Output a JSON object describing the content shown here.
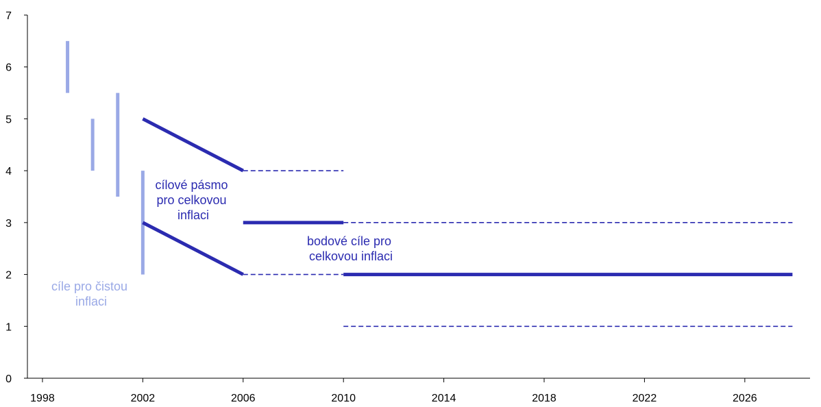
{
  "chart_data": {
    "type": "line",
    "title": "",
    "xlabel": "",
    "ylabel": "",
    "xlim": [
      1997.4,
      2028.6
    ],
    "ylim": [
      0,
      7
    ],
    "grid": false,
    "x_ticks": [
      1998,
      2002,
      2006,
      2010,
      2014,
      2018,
      2022,
      2026
    ],
    "y_ticks": [
      0,
      1,
      2,
      3,
      4,
      5,
      6,
      7
    ],
    "colors": {
      "net_targets": "#9aa9e6",
      "headline": "#2b2bb0",
      "axis": "#000000"
    },
    "series": [
      {
        "kind": "net-inflation-target-ranges",
        "color": "#9aa9e6",
        "ranges": [
          {
            "x": 1999,
            "low": 5.5,
            "high": 6.5
          },
          {
            "x": 2000,
            "low": 4.0,
            "high": 5.0
          },
          {
            "x": 2001,
            "low": 3.5,
            "high": 5.5
          },
          {
            "x": 2002,
            "low": 2.0,
            "high": 4.0
          }
        ]
      },
      {
        "kind": "target-band-upper",
        "style": "solid",
        "color": "#2b2bb0",
        "points": [
          [
            2002,
            5
          ],
          [
            2006,
            4
          ]
        ]
      },
      {
        "kind": "target-band-lower",
        "style": "solid",
        "color": "#2b2bb0",
        "points": [
          [
            2002,
            3
          ],
          [
            2006,
            2
          ]
        ]
      },
      {
        "kind": "band-upper-tolerance",
        "style": "dashed",
        "color": "#2b2bb0",
        "points": [
          [
            2006,
            4
          ],
          [
            2010,
            4
          ]
        ]
      },
      {
        "kind": "band-lower-tolerance",
        "style": "dashed",
        "color": "#2b2bb0",
        "points": [
          [
            2006,
            2
          ],
          [
            2010,
            2
          ]
        ]
      },
      {
        "kind": "point-target-3",
        "style": "solid",
        "color": "#2b2bb0",
        "points": [
          [
            2006,
            3
          ],
          [
            2010,
            3
          ]
        ]
      },
      {
        "kind": "point-target-2",
        "style": "solid",
        "color": "#2b2bb0",
        "points": [
          [
            2010,
            2
          ],
          [
            2027.9,
            2
          ]
        ]
      },
      {
        "kind": "tolerance-upper",
        "style": "dashed",
        "color": "#2b2bb0",
        "points": [
          [
            2010,
            3
          ],
          [
            2027.9,
            3
          ]
        ]
      },
      {
        "kind": "tolerance-lower",
        "style": "dashed",
        "color": "#2b2bb0",
        "points": [
          [
            2010,
            1
          ],
          [
            2027.9,
            1
          ]
        ]
      }
    ],
    "annotations": [
      {
        "lines": [
          "cílové pásmo",
          "pro celkovou",
          "inflaci"
        ],
        "color": "#2b2bb0"
      },
      {
        "lines": [
          "bodové cíle pro",
          "celkovou inflaci"
        ],
        "color": "#2b2bb0"
      },
      {
        "lines": [
          "cíle pro čistou",
          "inflaci"
        ],
        "color": "#9aa9e6"
      }
    ]
  }
}
